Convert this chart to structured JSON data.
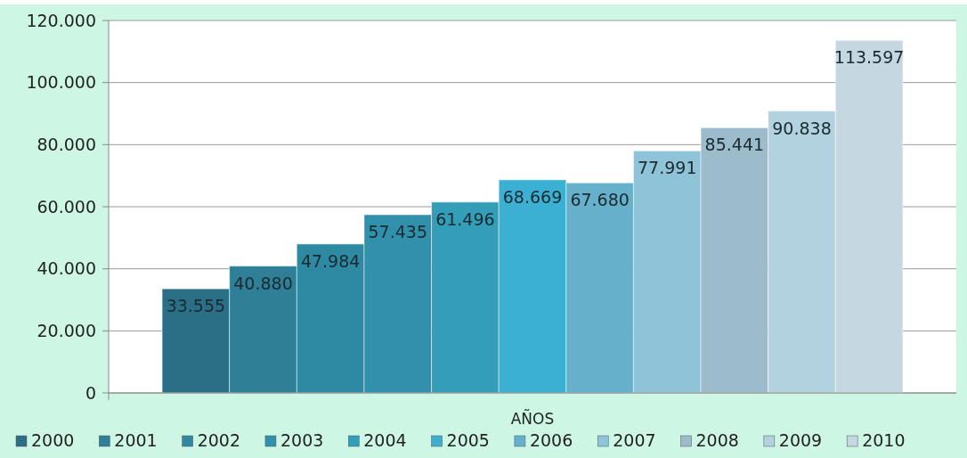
{
  "chart_data": {
    "type": "bar",
    "xlabel": null,
    "categories": [
      "AÑOS"
    ],
    "series": [
      {
        "name": "2000",
        "color": "#2a6f85",
        "values": [
          33555
        ],
        "value_labels": [
          "33.555"
        ]
      },
      {
        "name": "2001",
        "color": "#2f7f96",
        "values": [
          40880
        ],
        "value_labels": [
          "40.880"
        ]
      },
      {
        "name": "2002",
        "color": "#2e8aa2",
        "values": [
          47984
        ],
        "value_labels": [
          "47.984"
        ]
      },
      {
        "name": "2003",
        "color": "#3190ab",
        "values": [
          57435
        ],
        "value_labels": [
          "57.435"
        ]
      },
      {
        "name": "2004",
        "color": "#349db8",
        "values": [
          61496
        ],
        "value_labels": [
          "61.496"
        ]
      },
      {
        "name": "2005",
        "color": "#3bb0d3",
        "values": [
          68669
        ],
        "value_labels": [
          "68.669"
        ]
      },
      {
        "name": "2006",
        "color": "#66b0cc",
        "values": [
          67680
        ],
        "value_labels": [
          "67.680"
        ]
      },
      {
        "name": "2007",
        "color": "#8fc3d8",
        "values": [
          77991
        ],
        "value_labels": [
          "77.991"
        ]
      },
      {
        "name": "2008",
        "color": "#9cbccb",
        "values": [
          85441
        ],
        "value_labels": [
          "85.441"
        ]
      },
      {
        "name": "2009",
        "color": "#b3d2e0",
        "values": [
          90838
        ],
        "value_labels": [
          "90.838"
        ]
      },
      {
        "name": "2010",
        "color": "#c5d8e2",
        "values": [
          113597
        ],
        "value_labels": [
          "113.597"
        ]
      }
    ],
    "ylim": [
      0,
      120000
    ],
    "yticks": [
      0,
      {
        "value": 20000,
        "label": "20.000"
      },
      {
        "value": 40000,
        "label": "40.000"
      },
      {
        "value": 60000,
        "label": "60.000"
      },
      {
        "value": 80000,
        "label": "80.000"
      },
      {
        "value": 100000,
        "label": "100.000"
      },
      {
        "value": 120000,
        "label": "120.000"
      }
    ],
    "grid": "y",
    "legend": "bottom"
  }
}
